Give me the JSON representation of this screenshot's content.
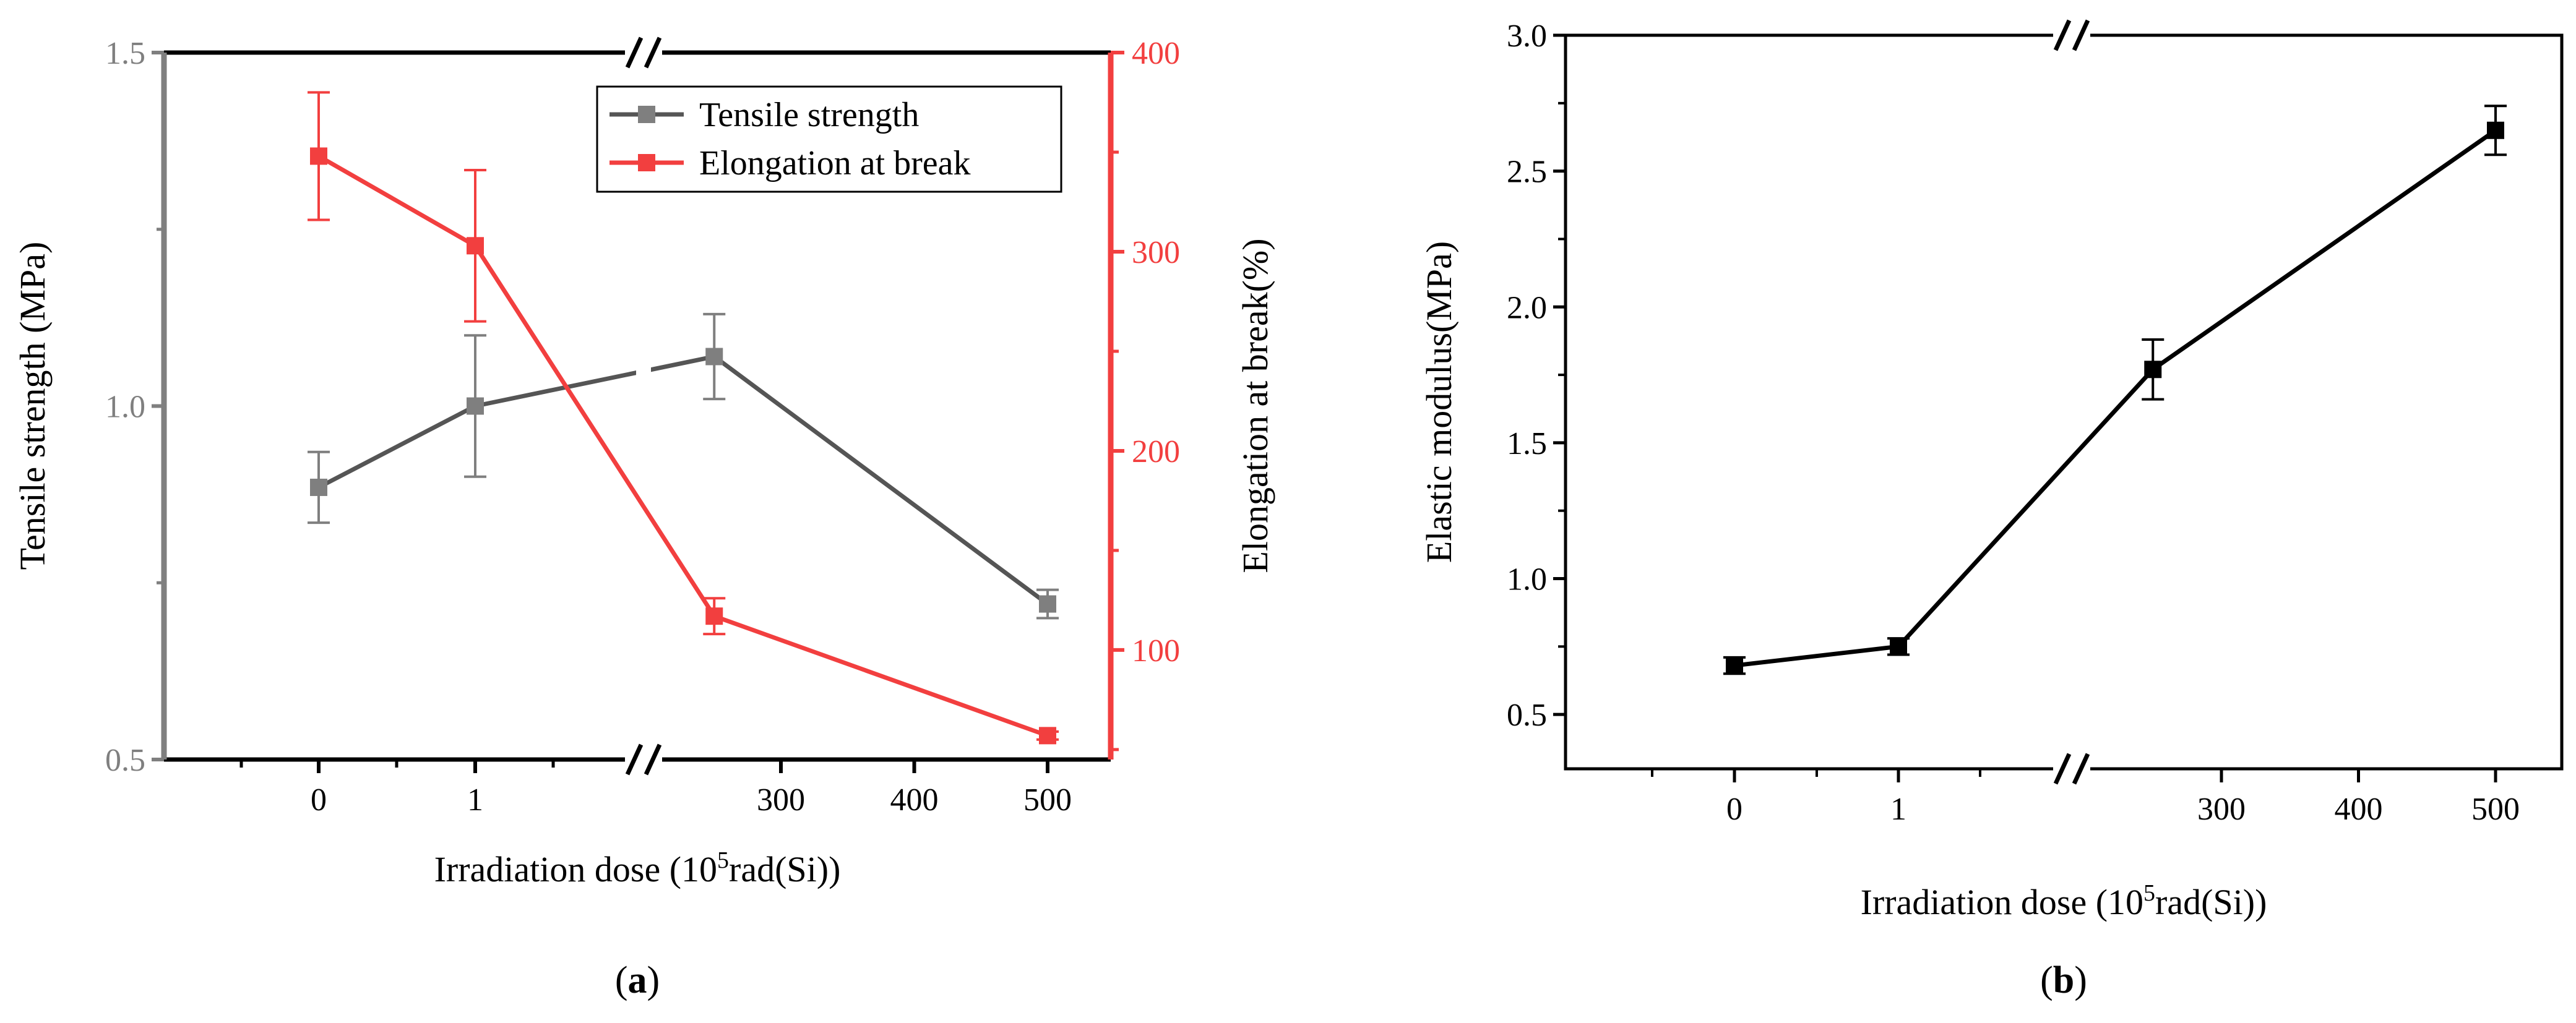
{
  "chart_data": [
    {
      "type": "line",
      "panel_label": "a",
      "xlabel": {
        "pre": "Irradiation dose (10",
        "sup": "5",
        "post": "rad(Si))"
      },
      "ylabel": "Tensile strength (MPa)",
      "y2label": "Elongation at break(%)",
      "x_categories": [
        "0",
        "1",
        "300",
        "400",
        "500"
      ],
      "x_axis_break": "between 1 and 300",
      "ylim": [
        0.5,
        1.5
      ],
      "y_ticks": [
        "0.5",
        "1.0",
        "1.5"
      ],
      "y2lim": [
        45,
        400
      ],
      "y2_ticks": [
        "100",
        "200",
        "300",
        "400"
      ],
      "legend_position": "top-right",
      "series": [
        {
          "name": "Tensile strength",
          "axis": "left",
          "color": "#555555",
          "marker_color": "#7f7f7f",
          "x": [
            0,
            1,
            250,
            500
          ],
          "y": [
            0.885,
            1.0,
            1.07,
            0.72
          ],
          "err": [
            0.05,
            0.1,
            0.06,
            0.02
          ]
        },
        {
          "name": "Elongation at break",
          "axis": "right",
          "color": "#f23f3f",
          "x": [
            0,
            1,
            250,
            500
          ],
          "y": [
            348,
            303,
            117,
            57
          ],
          "err": [
            32,
            38,
            9,
            2
          ]
        }
      ],
      "left_axis_color": "#7f7f7f",
      "right_axis_color": "#f23f3f"
    },
    {
      "type": "line",
      "panel_label": "b",
      "xlabel": {
        "pre": "Irradiation dose (10",
        "sup": "5",
        "post": "rad(Si))"
      },
      "ylabel": "Elastic modulus(MPa)",
      "x_categories": [
        "0",
        "1",
        "300",
        "400",
        "500"
      ],
      "x_axis_break": "between 1 and 300",
      "ylim": [
        0.3,
        3.0
      ],
      "y_ticks": [
        "0.5",
        "1.0",
        "1.5",
        "2.0",
        "2.5",
        "3.0"
      ],
      "series": [
        {
          "name": "Elastic modulus",
          "color": "#000000",
          "x": [
            0,
            1,
            250,
            500
          ],
          "y": [
            0.68,
            0.75,
            1.77,
            2.65
          ],
          "err": [
            0.03,
            0.03,
            0.11,
            0.09
          ]
        }
      ]
    }
  ]
}
